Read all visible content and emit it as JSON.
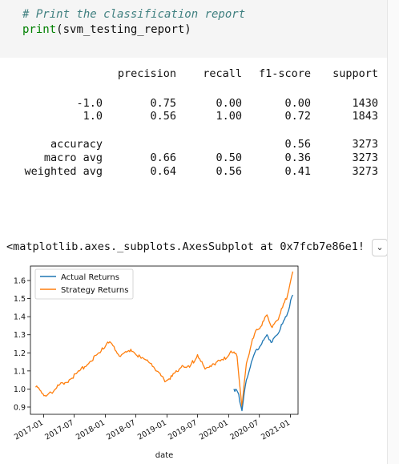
{
  "code": {
    "comment": "# Print the classification report",
    "func": "print",
    "arg": "(svm_testing_report)"
  },
  "report": {
    "headers": [
      "precision",
      "recall",
      "f1-score",
      "support"
    ],
    "rows": [
      {
        "label": "-1.0",
        "precision": "0.75",
        "recall": "0.00",
        "f1": "0.00",
        "support": "1430"
      },
      {
        "label": "1.0",
        "precision": "0.56",
        "recall": "1.00",
        "f1": "0.72",
        "support": "1843"
      },
      {
        "label": "accuracy",
        "precision": "",
        "recall": "",
        "f1": "0.56",
        "support": "3273"
      },
      {
        "label": "macro avg",
        "precision": "0.66",
        "recall": "0.50",
        "f1": "0.36",
        "support": "3273"
      },
      {
        "label": "weighted avg",
        "precision": "0.64",
        "recall": "0.56",
        "f1": "0.41",
        "support": "3273"
      }
    ]
  },
  "output": {
    "repr": "<matplotlib.axes._subplots.AxesSubplot at 0x7fcb7e86e1!",
    "toggle_icon": "chevron-down-icon"
  },
  "chart_data": {
    "type": "line",
    "xlabel": "date",
    "ylabel": "",
    "xticks": [
      "2017-01",
      "2017-07",
      "2018-01",
      "2018-07",
      "2019-01",
      "2019-07",
      "2020-01",
      "2020-07",
      "2021-01"
    ],
    "yticks": [
      "0.9",
      "1.0",
      "1.1",
      "1.2",
      "1.3",
      "1.4",
      "1.5",
      "1.6"
    ],
    "ylim": [
      0.86,
      1.68
    ],
    "legend_position": "upper-left",
    "series": [
      {
        "name": "Actual Returns",
        "color": "#1f77b4",
        "x": [
          "2020-02-01",
          "2020-03-01",
          "2020-03-20",
          "2020-04-15",
          "2020-05-15",
          "2020-06-15",
          "2020-07-15",
          "2020-08-15",
          "2020-09-15",
          "2020-10-15",
          "2020-11-15",
          "2020-12-15",
          "2021-01-15"
        ],
        "values": [
          1.0,
          0.97,
          0.88,
          1.05,
          1.15,
          1.22,
          1.25,
          1.3,
          1.26,
          1.3,
          1.36,
          1.42,
          1.52
        ]
      },
      {
        "name": "Strategy Returns",
        "color": "#ff7f0e",
        "x": [
          "2016-11-15",
          "2016-12-15",
          "2017-01-15",
          "2017-02-15",
          "2017-04-01",
          "2017-06-01",
          "2017-08-01",
          "2017-10-01",
          "2017-12-01",
          "2018-01-15",
          "2018-02-15",
          "2018-04-01",
          "2018-06-01",
          "2018-08-01",
          "2018-10-01",
          "2018-11-15",
          "2018-12-20",
          "2019-02-01",
          "2019-04-01",
          "2019-05-15",
          "2019-07-01",
          "2019-08-15",
          "2019-10-01",
          "2019-12-01",
          "2020-01-15",
          "2020-02-20",
          "2020-03-20",
          "2020-04-15",
          "2020-05-15",
          "2020-06-15",
          "2020-07-15",
          "2020-08-15",
          "2020-09-15",
          "2020-10-15",
          "2020-11-15",
          "2020-12-15",
          "2021-01-15"
        ],
        "values": [
          1.01,
          0.99,
          0.96,
          0.98,
          1.02,
          1.05,
          1.1,
          1.15,
          1.2,
          1.26,
          1.24,
          1.18,
          1.22,
          1.17,
          1.14,
          1.09,
          1.04,
          1.07,
          1.13,
          1.12,
          1.19,
          1.11,
          1.14,
          1.16,
          1.21,
          1.18,
          0.9,
          1.14,
          1.25,
          1.33,
          1.35,
          1.41,
          1.34,
          1.38,
          1.45,
          1.52,
          1.65
        ]
      }
    ]
  }
}
